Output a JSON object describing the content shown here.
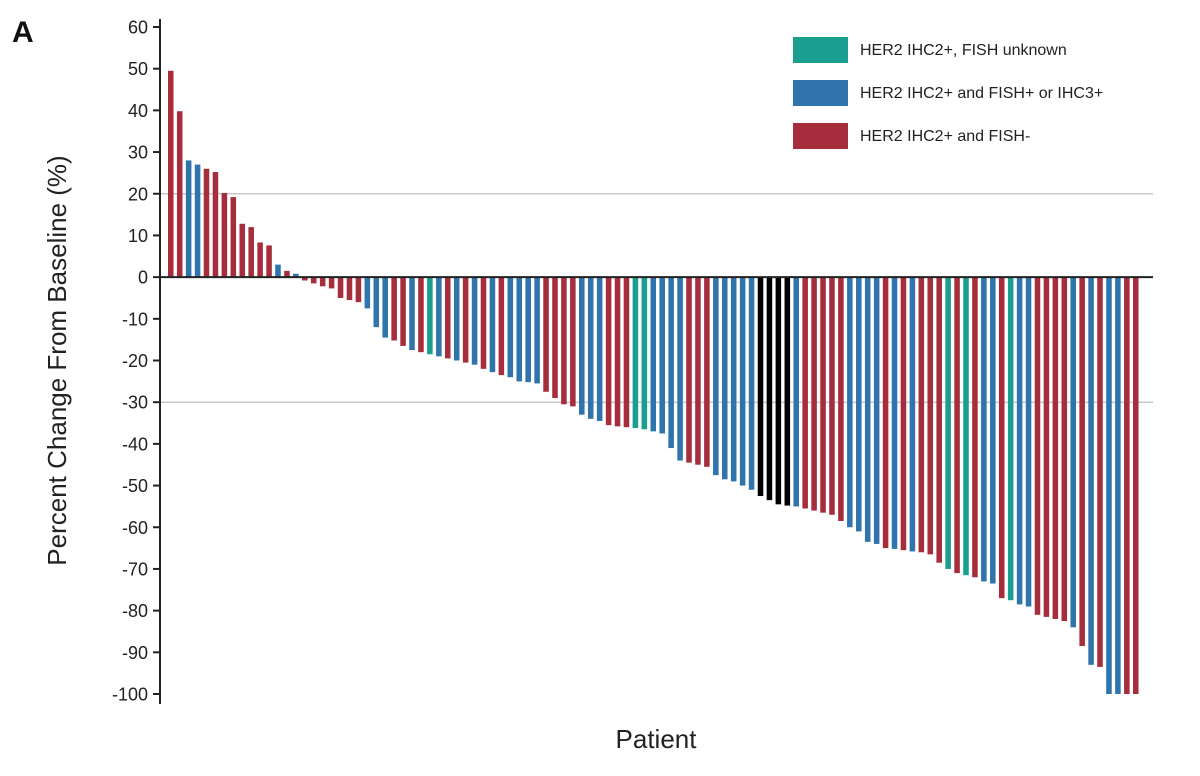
{
  "panel_label": "A",
  "colors": {
    "HER2 IHC2+, FISH unknown": "#1a9e8f",
    "HER2 IHC2+ and FISH+ or IHC3+": "#2f74ad",
    "HER2 IHC2+ and FISH-": "#a62d3c",
    "unlabeled": "#000000"
  },
  "chart_data": {
    "type": "bar",
    "title": "",
    "xlabel": "Patient",
    "ylabel": "Percent Change From Baseline (%)",
    "ylim": [
      -100,
      60
    ],
    "yticks": [
      60,
      50,
      40,
      30,
      20,
      10,
      0,
      -10,
      -20,
      -30,
      -40,
      -50,
      -60,
      -70,
      -80,
      -90,
      -100
    ],
    "reference_lines": [
      20,
      -30
    ],
    "legend": {
      "position": "top-right",
      "entries": [
        "HER2 IHC2+, FISH unknown",
        "HER2 IHC2+ and FISH+ or IHC3+",
        "HER2 IHC2+ and FISH-"
      ]
    },
    "bars": [
      {
        "value": 49.5,
        "group": "HER2 IHC2+ and FISH-"
      },
      {
        "value": 39.8,
        "group": "HER2 IHC2+ and FISH-"
      },
      {
        "value": 28.0,
        "group": "HER2 IHC2+ and FISH+ or IHC3+"
      },
      {
        "value": 27.0,
        "group": "HER2 IHC2+ and FISH+ or IHC3+"
      },
      {
        "value": 26.0,
        "group": "HER2 IHC2+ and FISH-"
      },
      {
        "value": 25.2,
        "group": "HER2 IHC2+ and FISH-"
      },
      {
        "value": 20.2,
        "group": "HER2 IHC2+ and FISH-"
      },
      {
        "value": 19.2,
        "group": "HER2 IHC2+ and FISH-"
      },
      {
        "value": 12.8,
        "group": "HER2 IHC2+ and FISH-"
      },
      {
        "value": 12.0,
        "group": "HER2 IHC2+ and FISH-"
      },
      {
        "value": 8.3,
        "group": "HER2 IHC2+ and FISH-"
      },
      {
        "value": 7.6,
        "group": "HER2 IHC2+ and FISH-"
      },
      {
        "value": 3.0,
        "group": "HER2 IHC2+ and FISH+ or IHC3+"
      },
      {
        "value": 1.5,
        "group": "HER2 IHC2+ and FISH-"
      },
      {
        "value": 0.8,
        "group": "HER2 IHC2+ and FISH+ or IHC3+"
      },
      {
        "value": -0.8,
        "group": "HER2 IHC2+ and FISH-"
      },
      {
        "value": -1.5,
        "group": "HER2 IHC2+ and FISH-"
      },
      {
        "value": -2.2,
        "group": "HER2 IHC2+ and FISH-"
      },
      {
        "value": -2.7,
        "group": "HER2 IHC2+ and FISH-"
      },
      {
        "value": -5.0,
        "group": "HER2 IHC2+ and FISH-"
      },
      {
        "value": -5.5,
        "group": "HER2 IHC2+ and FISH-"
      },
      {
        "value": -6.0,
        "group": "HER2 IHC2+ and FISH-"
      },
      {
        "value": -7.5,
        "group": "HER2 IHC2+ and FISH+ or IHC3+"
      },
      {
        "value": -12.0,
        "group": "HER2 IHC2+ and FISH+ or IHC3+"
      },
      {
        "value": -14.5,
        "group": "HER2 IHC2+ and FISH+ or IHC3+"
      },
      {
        "value": -15.2,
        "group": "HER2 IHC2+ and FISH-"
      },
      {
        "value": -16.5,
        "group": "HER2 IHC2+ and FISH-"
      },
      {
        "value": -17.5,
        "group": "HER2 IHC2+ and FISH+ or IHC3+"
      },
      {
        "value": -18.0,
        "group": "HER2 IHC2+ and FISH-"
      },
      {
        "value": -18.5,
        "group": "HER2 IHC2+, FISH unknown"
      },
      {
        "value": -19.0,
        "group": "HER2 IHC2+ and FISH+ or IHC3+"
      },
      {
        "value": -19.5,
        "group": "HER2 IHC2+ and FISH-"
      },
      {
        "value": -20.0,
        "group": "HER2 IHC2+ and FISH+ or IHC3+"
      },
      {
        "value": -20.5,
        "group": "HER2 IHC2+ and FISH-"
      },
      {
        "value": -21.0,
        "group": "HER2 IHC2+ and FISH+ or IHC3+"
      },
      {
        "value": -22.0,
        "group": "HER2 IHC2+ and FISH-"
      },
      {
        "value": -22.8,
        "group": "HER2 IHC2+ and FISH+ or IHC3+"
      },
      {
        "value": -23.5,
        "group": "HER2 IHC2+ and FISH-"
      },
      {
        "value": -24.0,
        "group": "HER2 IHC2+ and FISH+ or IHC3+"
      },
      {
        "value": -25.0,
        "group": "HER2 IHC2+ and FISH+ or IHC3+"
      },
      {
        "value": -25.2,
        "group": "HER2 IHC2+ and FISH+ or IHC3+"
      },
      {
        "value": -25.5,
        "group": "HER2 IHC2+ and FISH+ or IHC3+"
      },
      {
        "value": -27.5,
        "group": "HER2 IHC2+ and FISH-"
      },
      {
        "value": -29.0,
        "group": "HER2 IHC2+ and FISH-"
      },
      {
        "value": -30.5,
        "group": "HER2 IHC2+ and FISH-"
      },
      {
        "value": -31.0,
        "group": "HER2 IHC2+ and FISH-"
      },
      {
        "value": -33.0,
        "group": "HER2 IHC2+ and FISH+ or IHC3+"
      },
      {
        "value": -34.0,
        "group": "HER2 IHC2+ and FISH+ or IHC3+"
      },
      {
        "value": -34.5,
        "group": "HER2 IHC2+ and FISH+ or IHC3+"
      },
      {
        "value": -35.5,
        "group": "HER2 IHC2+ and FISH-"
      },
      {
        "value": -35.8,
        "group": "HER2 IHC2+ and FISH-"
      },
      {
        "value": -36.0,
        "group": "HER2 IHC2+ and FISH-"
      },
      {
        "value": -36.2,
        "group": "HER2 IHC2+, FISH unknown"
      },
      {
        "value": -36.5,
        "group": "HER2 IHC2+, FISH unknown"
      },
      {
        "value": -37.0,
        "group": "HER2 IHC2+ and FISH+ or IHC3+"
      },
      {
        "value": -37.5,
        "group": "HER2 IHC2+ and FISH+ or IHC3+"
      },
      {
        "value": -41.0,
        "group": "HER2 IHC2+ and FISH+ or IHC3+"
      },
      {
        "value": -44.0,
        "group": "HER2 IHC2+ and FISH+ or IHC3+"
      },
      {
        "value": -44.5,
        "group": "HER2 IHC2+ and FISH-"
      },
      {
        "value": -45.0,
        "group": "HER2 IHC2+ and FISH-"
      },
      {
        "value": -45.5,
        "group": "HER2 IHC2+ and FISH-"
      },
      {
        "value": -47.5,
        "group": "HER2 IHC2+ and FISH+ or IHC3+"
      },
      {
        "value": -48.5,
        "group": "HER2 IHC2+ and FISH+ or IHC3+"
      },
      {
        "value": -49.0,
        "group": "HER2 IHC2+ and FISH+ or IHC3+"
      },
      {
        "value": -50.0,
        "group": "HER2 IHC2+ and FISH+ or IHC3+"
      },
      {
        "value": -51.0,
        "group": "HER2 IHC2+ and FISH+ or IHC3+"
      },
      {
        "value": -52.5,
        "group": "unlabeled"
      },
      {
        "value": -53.5,
        "group": "unlabeled"
      },
      {
        "value": -54.5,
        "group": "unlabeled"
      },
      {
        "value": -54.8,
        "group": "unlabeled"
      },
      {
        "value": -55.0,
        "group": "HER2 IHC2+ and FISH+ or IHC3+"
      },
      {
        "value": -55.5,
        "group": "HER2 IHC2+ and FISH-"
      },
      {
        "value": -56.0,
        "group": "HER2 IHC2+ and FISH-"
      },
      {
        "value": -56.5,
        "group": "HER2 IHC2+ and FISH-"
      },
      {
        "value": -57.0,
        "group": "HER2 IHC2+ and FISH-"
      },
      {
        "value": -58.5,
        "group": "HER2 IHC2+ and FISH-"
      },
      {
        "value": -60.0,
        "group": "HER2 IHC2+ and FISH+ or IHC3+"
      },
      {
        "value": -61.0,
        "group": "HER2 IHC2+ and FISH+ or IHC3+"
      },
      {
        "value": -63.5,
        "group": "HER2 IHC2+ and FISH+ or IHC3+"
      },
      {
        "value": -64.0,
        "group": "HER2 IHC2+ and FISH+ or IHC3+"
      },
      {
        "value": -65.0,
        "group": "HER2 IHC2+ and FISH-"
      },
      {
        "value": -65.2,
        "group": "HER2 IHC2+ and FISH+ or IHC3+"
      },
      {
        "value": -65.5,
        "group": "HER2 IHC2+ and FISH-"
      },
      {
        "value": -65.8,
        "group": "HER2 IHC2+ and FISH+ or IHC3+"
      },
      {
        "value": -66.0,
        "group": "HER2 IHC2+ and FISH-"
      },
      {
        "value": -66.5,
        "group": "HER2 IHC2+ and FISH-"
      },
      {
        "value": -68.5,
        "group": "HER2 IHC2+ and FISH-"
      },
      {
        "value": -70.0,
        "group": "HER2 IHC2+, FISH unknown"
      },
      {
        "value": -71.0,
        "group": "HER2 IHC2+ and FISH-"
      },
      {
        "value": -71.5,
        "group": "HER2 IHC2+, FISH unknown"
      },
      {
        "value": -72.0,
        "group": "HER2 IHC2+ and FISH-"
      },
      {
        "value": -73.0,
        "group": "HER2 IHC2+ and FISH+ or IHC3+"
      },
      {
        "value": -73.5,
        "group": "HER2 IHC2+ and FISH+ or IHC3+"
      },
      {
        "value": -77.0,
        "group": "HER2 IHC2+ and FISH-"
      },
      {
        "value": -77.5,
        "group": "HER2 IHC2+, FISH unknown"
      },
      {
        "value": -78.5,
        "group": "HER2 IHC2+ and FISH+ or IHC3+"
      },
      {
        "value": -79.0,
        "group": "HER2 IHC2+ and FISH+ or IHC3+"
      },
      {
        "value": -81.0,
        "group": "HER2 IHC2+ and FISH-"
      },
      {
        "value": -81.5,
        "group": "HER2 IHC2+ and FISH-"
      },
      {
        "value": -82.0,
        "group": "HER2 IHC2+ and FISH-"
      },
      {
        "value": -82.5,
        "group": "HER2 IHC2+ and FISH-"
      },
      {
        "value": -84.0,
        "group": "HER2 IHC2+ and FISH+ or IHC3+"
      },
      {
        "value": -88.5,
        "group": "HER2 IHC2+ and FISH-"
      },
      {
        "value": -93.0,
        "group": "HER2 IHC2+ and FISH+ or IHC3+"
      },
      {
        "value": -93.5,
        "group": "HER2 IHC2+ and FISH-"
      },
      {
        "value": -100.0,
        "group": "HER2 IHC2+ and FISH+ or IHC3+"
      },
      {
        "value": -100.0,
        "group": "HER2 IHC2+ and FISH+ or IHC3+"
      },
      {
        "value": -100.0,
        "group": "HER2 IHC2+ and FISH-"
      },
      {
        "value": -100.0,
        "group": "HER2 IHC2+ and FISH-"
      }
    ]
  }
}
